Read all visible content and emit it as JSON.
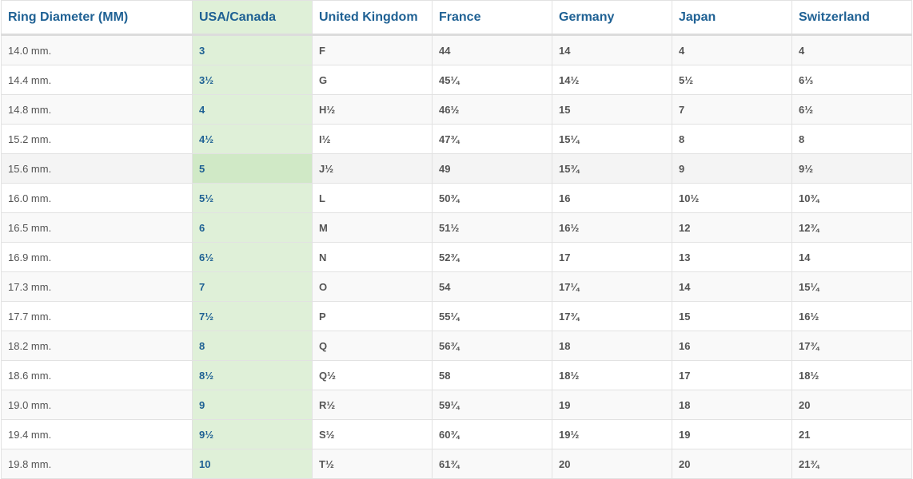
{
  "headers": [
    "Ring Diameter (MM)",
    "USA/Canada",
    "United Kingdom",
    "France",
    "Germany",
    "Japan",
    "Switzerland"
  ],
  "highlight_color": "#dff0d8",
  "hovered_row": 4,
  "rows": [
    [
      "14.0 mm.",
      "3",
      "F",
      "44",
      "14",
      "4",
      "4"
    ],
    [
      "14.4 mm.",
      "3½",
      "G",
      "45¼",
      "14½",
      "5½",
      "6⅓"
    ],
    [
      "14.8 mm.",
      "4",
      "H½",
      "46½",
      "15",
      "7",
      "6½"
    ],
    [
      "15.2 mm.",
      "4½",
      "I½",
      "47¾",
      "15¼",
      "8",
      "8"
    ],
    [
      "15.6 mm.",
      "5",
      "J½",
      "49",
      "15¾",
      "9",
      "9½"
    ],
    [
      "16.0 mm.",
      "5½",
      "L",
      "50¾",
      "16",
      "10½",
      "10¾"
    ],
    [
      "16.5 mm.",
      "6",
      "M",
      "51½",
      "16½",
      "12",
      "12¾"
    ],
    [
      "16.9 mm.",
      "6½",
      "N",
      "52¾",
      "17",
      "13",
      "14"
    ],
    [
      "17.3 mm.",
      "7",
      "O",
      "54",
      "17¼",
      "14",
      "15¼"
    ],
    [
      "17.7 mm.",
      "7½",
      "P",
      "55¼",
      "17¾",
      "15",
      "16½"
    ],
    [
      "18.2 mm.",
      "8",
      "Q",
      "56¾",
      "18",
      "16",
      "17¾"
    ],
    [
      "18.6 mm.",
      "8½",
      "Q½",
      "58",
      "18½",
      "17",
      "18½"
    ],
    [
      "19.0 mm.",
      "9",
      "R½",
      "59¼",
      "19",
      "18",
      "20"
    ],
    [
      "19.4 mm.",
      "9½",
      "S½",
      "60¾",
      "19½",
      "19",
      "21"
    ],
    [
      "19.8 mm.",
      "10",
      "T½",
      "61¾",
      "20",
      "20",
      "21¾"
    ]
  ]
}
